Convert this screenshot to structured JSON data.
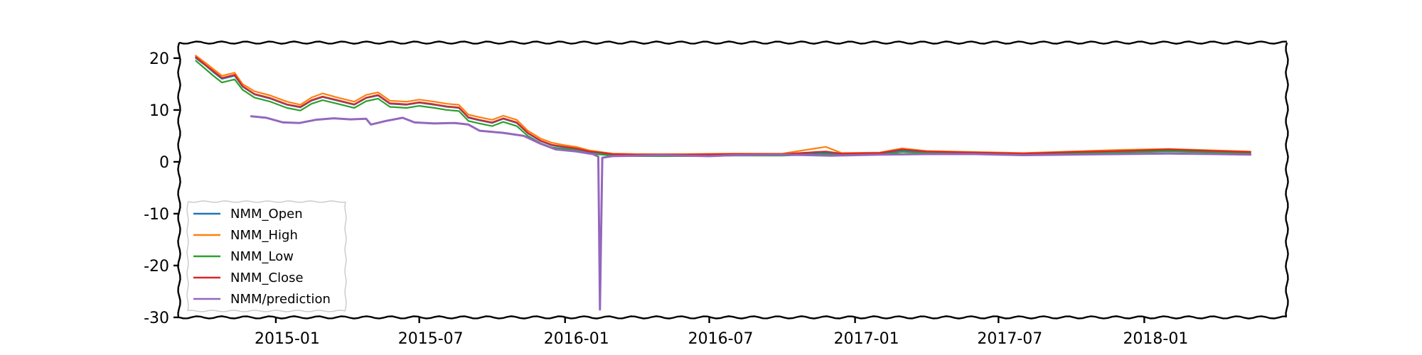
{
  "chart_data": {
    "type": "line",
    "title": "",
    "xlabel": "",
    "ylabel": "",
    "x_range": [
      "2014-09-01",
      "2018-06-30"
    ],
    "ylim": [
      -30,
      23
    ],
    "x_ticks": [
      "2015-01",
      "2015-07",
      "2016-01",
      "2016-07",
      "2017-01",
      "2017-07",
      "2018-01"
    ],
    "y_ticks": [
      -30,
      -20,
      -10,
      0,
      10,
      20
    ],
    "grid": false,
    "legend_position": "lower-left",
    "series": [
      {
        "name": "NMM_Open",
        "color": "#1f77b4",
        "points": [
          [
            "2014-09-22",
            20.0
          ],
          [
            "2014-10-05",
            18.5
          ],
          [
            "2014-10-15",
            17.2
          ],
          [
            "2014-10-25",
            16.0
          ],
          [
            "2014-11-10",
            16.6
          ],
          [
            "2014-11-20",
            14.5
          ],
          [
            "2014-12-05",
            13.0
          ],
          [
            "2014-12-25",
            12.2
          ],
          [
            "2015-01-15",
            11.0
          ],
          [
            "2015-02-01",
            10.5
          ],
          [
            "2015-02-15",
            11.8
          ],
          [
            "2015-03-01",
            12.5
          ],
          [
            "2015-03-20",
            11.8
          ],
          [
            "2015-04-10",
            11.0
          ],
          [
            "2015-04-25",
            12.3
          ],
          [
            "2015-05-10",
            12.8
          ],
          [
            "2015-05-25",
            11.2
          ],
          [
            "2015-06-15",
            11.0
          ],
          [
            "2015-07-01",
            11.4
          ],
          [
            "2015-07-20",
            11.0
          ],
          [
            "2015-08-05",
            10.6
          ],
          [
            "2015-08-20",
            10.4
          ],
          [
            "2015-09-01",
            8.5
          ],
          [
            "2015-09-15",
            8.0
          ],
          [
            "2015-10-01",
            7.5
          ],
          [
            "2015-10-15",
            8.3
          ],
          [
            "2015-11-01",
            7.5
          ],
          [
            "2015-11-15",
            5.5
          ],
          [
            "2015-12-01",
            4.0
          ],
          [
            "2015-12-15",
            3.2
          ],
          [
            "2016-01-01",
            2.8
          ],
          [
            "2016-01-15",
            2.5
          ],
          [
            "2016-02-01",
            1.9
          ],
          [
            "2016-02-15",
            1.7
          ],
          [
            "2016-03-01",
            1.4
          ],
          [
            "2016-04-01",
            1.3
          ],
          [
            "2016-06-01",
            1.3
          ],
          [
            "2016-08-01",
            1.4
          ],
          [
            "2016-10-01",
            1.4
          ],
          [
            "2016-11-25",
            1.8
          ],
          [
            "2016-12-15",
            1.5
          ],
          [
            "2017-02-01",
            1.6
          ],
          [
            "2017-03-01",
            2.2
          ],
          [
            "2017-04-01",
            1.9
          ],
          [
            "2017-06-01",
            1.7
          ],
          [
            "2017-08-01",
            1.5
          ],
          [
            "2017-10-01",
            1.8
          ],
          [
            "2017-12-01",
            2.0
          ],
          [
            "2018-02-01",
            2.2
          ],
          [
            "2018-04-01",
            2.0
          ],
          [
            "2018-05-15",
            1.8
          ]
        ]
      },
      {
        "name": "NMM_High",
        "color": "#ff7f0e",
        "points": [
          [
            "2014-09-22",
            20.5
          ],
          [
            "2014-10-05",
            19.0
          ],
          [
            "2014-10-15",
            17.8
          ],
          [
            "2014-10-25",
            16.6
          ],
          [
            "2014-11-10",
            17.2
          ],
          [
            "2014-11-20",
            15.0
          ],
          [
            "2014-12-05",
            13.6
          ],
          [
            "2014-12-25",
            12.8
          ],
          [
            "2015-01-15",
            11.6
          ],
          [
            "2015-02-01",
            11.0
          ],
          [
            "2015-02-15",
            12.4
          ],
          [
            "2015-03-01",
            13.2
          ],
          [
            "2015-03-20",
            12.4
          ],
          [
            "2015-04-10",
            11.6
          ],
          [
            "2015-04-25",
            12.9
          ],
          [
            "2015-05-10",
            13.4
          ],
          [
            "2015-05-25",
            11.8
          ],
          [
            "2015-06-15",
            11.6
          ],
          [
            "2015-07-01",
            12.0
          ],
          [
            "2015-07-20",
            11.6
          ],
          [
            "2015-08-05",
            11.2
          ],
          [
            "2015-08-20",
            11.0
          ],
          [
            "2015-09-01",
            9.1
          ],
          [
            "2015-09-15",
            8.6
          ],
          [
            "2015-10-01",
            8.1
          ],
          [
            "2015-10-15",
            8.9
          ],
          [
            "2015-11-01",
            8.1
          ],
          [
            "2015-11-15",
            6.0
          ],
          [
            "2015-12-01",
            4.5
          ],
          [
            "2015-12-15",
            3.7
          ],
          [
            "2016-01-01",
            3.2
          ],
          [
            "2016-01-15",
            2.9
          ],
          [
            "2016-02-01",
            2.2
          ],
          [
            "2016-02-15",
            1.9
          ],
          [
            "2016-03-01",
            1.6
          ],
          [
            "2016-04-01",
            1.5
          ],
          [
            "2016-06-01",
            1.5
          ],
          [
            "2016-08-01",
            1.6
          ],
          [
            "2016-10-01",
            1.6
          ],
          [
            "2016-11-25",
            2.9
          ],
          [
            "2016-12-15",
            1.7
          ],
          [
            "2017-02-01",
            1.8
          ],
          [
            "2017-03-01",
            2.6
          ],
          [
            "2017-04-01",
            2.1
          ],
          [
            "2017-06-01",
            1.9
          ],
          [
            "2017-08-01",
            1.7
          ],
          [
            "2017-10-01",
            2.0
          ],
          [
            "2017-12-01",
            2.3
          ],
          [
            "2018-02-01",
            2.5
          ],
          [
            "2018-04-01",
            2.2
          ],
          [
            "2018-05-15",
            2.0
          ]
        ]
      },
      {
        "name": "NMM_Low",
        "color": "#2ca02c",
        "points": [
          [
            "2014-09-22",
            19.5
          ],
          [
            "2014-10-05",
            17.8
          ],
          [
            "2014-10-15",
            16.5
          ],
          [
            "2014-10-25",
            15.3
          ],
          [
            "2014-11-10",
            15.9
          ],
          [
            "2014-11-20",
            13.9
          ],
          [
            "2014-12-05",
            12.4
          ],
          [
            "2014-12-25",
            11.6
          ],
          [
            "2015-01-15",
            10.4
          ],
          [
            "2015-02-01",
            9.9
          ],
          [
            "2015-02-15",
            11.2
          ],
          [
            "2015-03-01",
            11.9
          ],
          [
            "2015-03-20",
            11.2
          ],
          [
            "2015-04-10",
            10.4
          ],
          [
            "2015-04-25",
            11.7
          ],
          [
            "2015-05-10",
            12.2
          ],
          [
            "2015-05-25",
            10.6
          ],
          [
            "2015-06-15",
            10.4
          ],
          [
            "2015-07-01",
            10.8
          ],
          [
            "2015-07-20",
            10.4
          ],
          [
            "2015-08-05",
            10.0
          ],
          [
            "2015-08-20",
            9.8
          ],
          [
            "2015-09-01",
            7.9
          ],
          [
            "2015-09-15",
            7.4
          ],
          [
            "2015-10-01",
            6.9
          ],
          [
            "2015-10-15",
            7.7
          ],
          [
            "2015-11-01",
            6.9
          ],
          [
            "2015-11-15",
            5.0
          ],
          [
            "2015-12-01",
            3.6
          ],
          [
            "2015-12-15",
            2.8
          ],
          [
            "2016-01-01",
            2.5
          ],
          [
            "2016-01-15",
            2.2
          ],
          [
            "2016-02-01",
            1.6
          ],
          [
            "2016-02-15",
            1.4
          ],
          [
            "2016-03-01",
            1.2
          ],
          [
            "2016-04-01",
            1.1
          ],
          [
            "2016-06-01",
            1.1
          ],
          [
            "2016-08-01",
            1.2
          ],
          [
            "2016-10-01",
            1.2
          ],
          [
            "2016-11-25",
            1.5
          ],
          [
            "2016-12-15",
            1.3
          ],
          [
            "2017-02-01",
            1.4
          ],
          [
            "2017-03-01",
            1.9
          ],
          [
            "2017-04-01",
            1.7
          ],
          [
            "2017-06-01",
            1.5
          ],
          [
            "2017-08-01",
            1.3
          ],
          [
            "2017-10-01",
            1.6
          ],
          [
            "2017-12-01",
            1.8
          ],
          [
            "2018-02-01",
            2.0
          ],
          [
            "2018-04-01",
            1.8
          ],
          [
            "2018-05-15",
            1.6
          ]
        ]
      },
      {
        "name": "NMM_Close",
        "color": "#d62728",
        "points": [
          [
            "2014-09-22",
            20.2
          ],
          [
            "2014-10-05",
            18.6
          ],
          [
            "2014-10-15",
            17.4
          ],
          [
            "2014-10-25",
            16.2
          ],
          [
            "2014-11-10",
            16.8
          ],
          [
            "2014-11-20",
            14.6
          ],
          [
            "2014-12-05",
            13.1
          ],
          [
            "2014-12-25",
            12.3
          ],
          [
            "2015-01-15",
            11.1
          ],
          [
            "2015-02-01",
            10.6
          ],
          [
            "2015-02-15",
            11.9
          ],
          [
            "2015-03-01",
            12.6
          ],
          [
            "2015-03-20",
            11.9
          ],
          [
            "2015-04-10",
            11.1
          ],
          [
            "2015-04-25",
            12.4
          ],
          [
            "2015-05-10",
            12.9
          ],
          [
            "2015-05-25",
            11.3
          ],
          [
            "2015-06-15",
            11.1
          ],
          [
            "2015-07-01",
            11.5
          ],
          [
            "2015-07-20",
            11.1
          ],
          [
            "2015-08-05",
            10.7
          ],
          [
            "2015-08-20",
            10.5
          ],
          [
            "2015-09-01",
            8.6
          ],
          [
            "2015-09-15",
            8.1
          ],
          [
            "2015-10-01",
            7.6
          ],
          [
            "2015-10-15",
            8.4
          ],
          [
            "2015-11-01",
            7.6
          ],
          [
            "2015-11-15",
            5.6
          ],
          [
            "2015-12-01",
            4.1
          ],
          [
            "2015-12-15",
            3.3
          ],
          [
            "2016-01-01",
            2.9
          ],
          [
            "2016-01-15",
            2.6
          ],
          [
            "2016-02-01",
            2.0
          ],
          [
            "2016-02-15",
            1.8
          ],
          [
            "2016-03-01",
            1.5
          ],
          [
            "2016-04-01",
            1.4
          ],
          [
            "2016-06-01",
            1.4
          ],
          [
            "2016-08-01",
            1.5
          ],
          [
            "2016-10-01",
            1.5
          ],
          [
            "2016-11-25",
            2.0
          ],
          [
            "2016-12-15",
            1.6
          ],
          [
            "2017-02-01",
            1.7
          ],
          [
            "2017-03-01",
            2.4
          ],
          [
            "2017-04-01",
            2.0
          ],
          [
            "2017-06-01",
            1.8
          ],
          [
            "2017-08-01",
            1.6
          ],
          [
            "2017-10-01",
            1.9
          ],
          [
            "2017-12-01",
            2.1
          ],
          [
            "2018-02-01",
            2.4
          ],
          [
            "2018-04-01",
            2.1
          ],
          [
            "2018-05-15",
            1.9
          ]
        ]
      },
      {
        "name": "NMM/prediction",
        "color": "#9467bd",
        "points": [
          [
            "2014-12-01",
            8.8
          ],
          [
            "2014-12-20",
            8.5
          ],
          [
            "2015-01-10",
            7.6
          ],
          [
            "2015-01-31",
            7.5
          ],
          [
            "2015-02-20",
            8.1
          ],
          [
            "2015-03-15",
            8.4
          ],
          [
            "2015-04-05",
            8.2
          ],
          [
            "2015-04-25",
            8.3
          ],
          [
            "2015-05-01",
            7.2
          ],
          [
            "2015-05-20",
            7.9
          ],
          [
            "2015-06-10",
            8.5
          ],
          [
            "2015-06-25",
            7.6
          ],
          [
            "2015-07-20",
            7.4
          ],
          [
            "2015-08-15",
            7.5
          ],
          [
            "2015-09-01",
            7.2
          ],
          [
            "2015-09-15",
            6.0
          ],
          [
            "2015-10-15",
            5.6
          ],
          [
            "2015-11-10",
            5.0
          ],
          [
            "2015-12-01",
            3.5
          ],
          [
            "2015-12-20",
            2.4
          ],
          [
            "2016-01-15",
            2.0
          ],
          [
            "2016-02-05",
            1.5
          ],
          [
            "2016-02-12",
            1.0
          ],
          [
            "2016-02-14",
            -28.5
          ],
          [
            "2016-02-17",
            0.8
          ],
          [
            "2016-03-01",
            1.1
          ],
          [
            "2016-04-01",
            1.2
          ],
          [
            "2016-05-01",
            1.3
          ],
          [
            "2016-06-01",
            1.2
          ],
          [
            "2016-07-01",
            1.1
          ],
          [
            "2016-08-01",
            1.3
          ],
          [
            "2016-10-01",
            1.4
          ],
          [
            "2016-12-01",
            1.2
          ],
          [
            "2017-02-01",
            1.4
          ],
          [
            "2017-04-01",
            1.5
          ],
          [
            "2017-06-01",
            1.5
          ],
          [
            "2017-08-01",
            1.3
          ],
          [
            "2017-10-01",
            1.4
          ],
          [
            "2017-12-01",
            1.5
          ],
          [
            "2018-02-01",
            1.6
          ],
          [
            "2018-04-01",
            1.5
          ],
          [
            "2018-05-15",
            1.4
          ]
        ]
      }
    ]
  }
}
